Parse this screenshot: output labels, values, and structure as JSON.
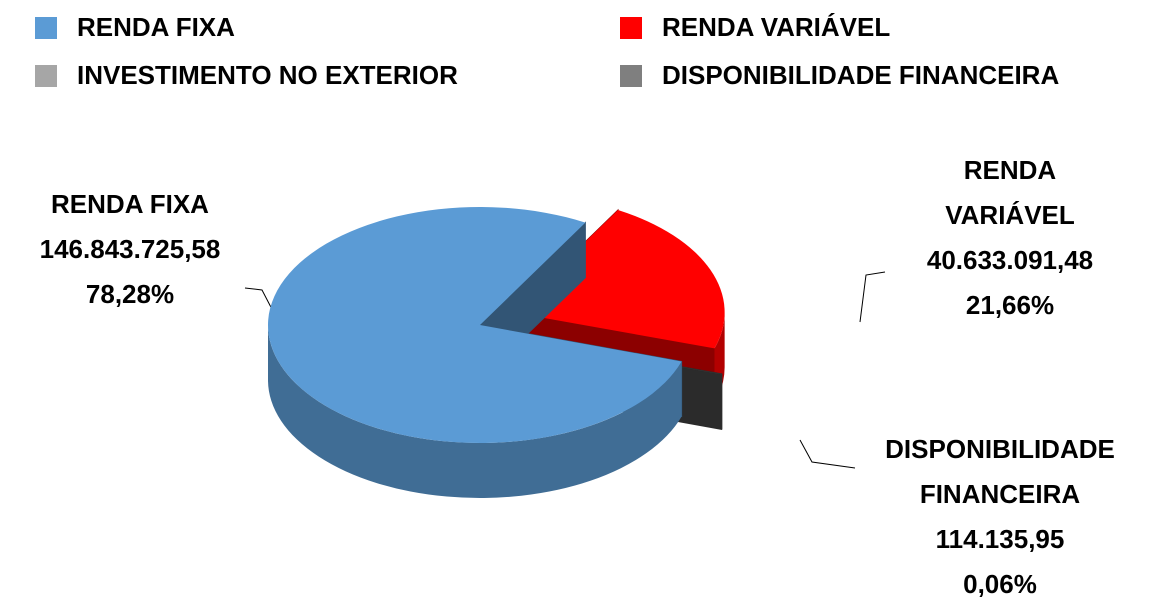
{
  "chart_data": {
    "type": "pie",
    "categories": [
      "RENDA FIXA",
      "RENDA VARIÁVEL",
      "INVESTIMENTO NO EXTERIOR",
      "DISPONIBILIDADE FINANCEIRA"
    ],
    "values": [
      78.28,
      21.66,
      0,
      0.06
    ],
    "value_labels": [
      "78,28%",
      "21,66%",
      null,
      "0,06%"
    ],
    "amounts": [
      146843725.58,
      40633091.48,
      null,
      114135.95
    ],
    "amount_labels": [
      "146.843.725,58",
      "40.633.091,48",
      null,
      "114.135,95"
    ],
    "colors": [
      "#5b9bd5",
      "#ff0000",
      "#a6a6a6",
      "#7f7f7f"
    ],
    "legend": "top"
  }
}
